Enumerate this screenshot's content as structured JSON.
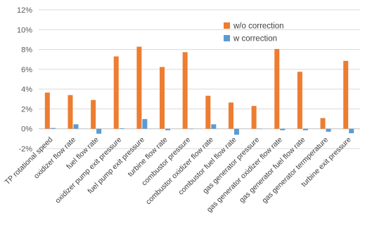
{
  "chart_data": {
    "type": "bar",
    "title": "",
    "xlabel": "",
    "ylabel": "",
    "ylim": [
      -0.02,
      0.12
    ],
    "yticks": [
      -0.02,
      0,
      0.02,
      0.04,
      0.06,
      0.08,
      0.1,
      0.12
    ],
    "ytick_labels": [
      "-2%",
      "0%",
      "2%",
      "4%",
      "6%",
      "8%",
      "10%",
      "12%"
    ],
    "grid": true,
    "legend_position": "top-right",
    "categories": [
      "TP rotational speed",
      "oxidizer flow rate",
      "fuel flow rate",
      "oxidizer pump exit pressure",
      "fuel pump exit pressure",
      "turbine flow rate",
      "combustor pressure",
      "combustor oxidizer flow rate",
      "combustor fuel flow rate",
      "gas generator pressure",
      "gas generator oxidizer flow rate",
      "gas generator fuel flow rate",
      "gas generator termperature",
      "turbine exit pressure"
    ],
    "series": [
      {
        "name": "w/o correction",
        "color": "#ED7D31",
        "values": [
          0.0365,
          0.034,
          0.029,
          0.073,
          0.0828,
          0.0623,
          0.0773,
          0.0333,
          0.0265,
          0.023,
          0.0805,
          0.0575,
          0.0108,
          0.0685
        ]
      },
      {
        "name": "w correction",
        "color": "#5B9BD5",
        "values": [
          0.0008,
          0.0045,
          -0.005,
          0.0005,
          0.0098,
          -0.0015,
          0.0,
          0.0045,
          -0.006,
          0.0,
          -0.0015,
          -0.0015,
          -0.003,
          -0.0045
        ]
      }
    ]
  }
}
